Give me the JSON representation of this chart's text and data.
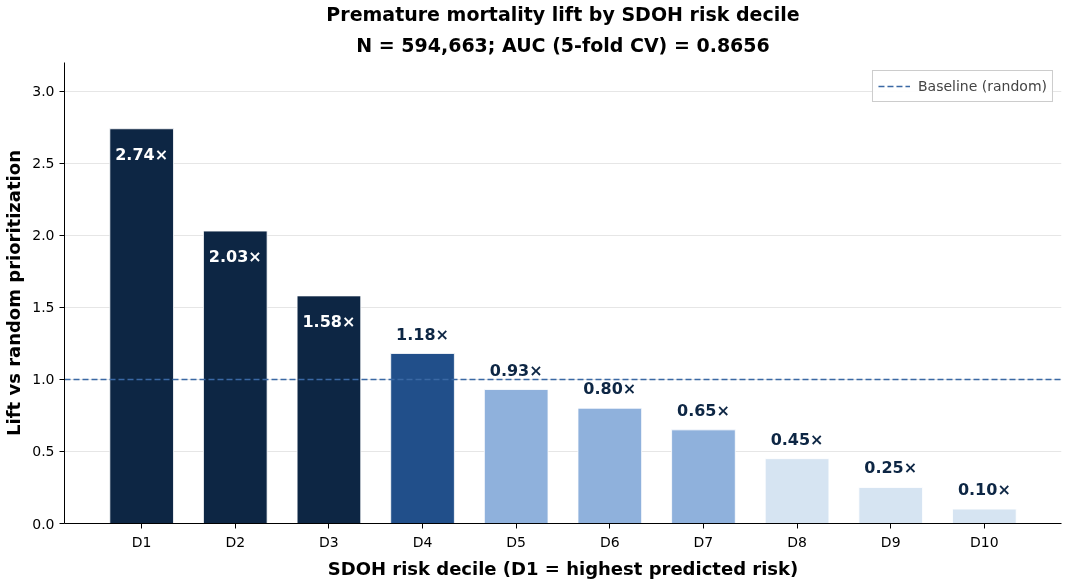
{
  "chart_data": {
    "type": "bar",
    "title": "Premature mortality lift by SDOH risk decile",
    "subtitle": "N = 594,663; AUC (5-fold CV) = 0.8656",
    "xlabel": "SDOH risk decile (D1 = highest predicted risk)",
    "ylabel": "Lift vs random prioritization",
    "categories": [
      "D1",
      "D2",
      "D3",
      "D4",
      "D5",
      "D6",
      "D7",
      "D8",
      "D9",
      "D10"
    ],
    "values": [
      2.74,
      2.03,
      1.58,
      1.18,
      0.93,
      0.8,
      0.65,
      0.45,
      0.25,
      0.1
    ],
    "colors": [
      "#0d2644",
      "#0d2644",
      "#0d2644",
      "#214f8a",
      "#8fb1dc",
      "#8fb1dc",
      "#8fb1dc",
      "#d6e4f2",
      "#d6e4f2",
      "#d6e4f2"
    ],
    "value_labels": [
      "2.74×",
      "2.03×",
      "1.58×",
      "1.18×",
      "0.93×",
      "0.80×",
      "0.65×",
      "0.45×",
      "0.25×",
      "0.10×"
    ],
    "ylim": [
      0,
      3.2
    ],
    "yticks": [
      {
        "value": 0,
        "label": "0.0"
      },
      {
        "value": 0.5,
        "label": "0.5"
      },
      {
        "value": 1,
        "label": "1.0"
      },
      {
        "value": 1.5,
        "label": "1.5"
      },
      {
        "value": 2,
        "label": "2.0"
      },
      {
        "value": 2.5,
        "label": "2.5"
      },
      {
        "value": 3,
        "label": "3.0"
      }
    ],
    "grid": "y",
    "legend": "top right",
    "ref_lines": [
      {
        "axis": "y",
        "value": 1.0,
        "label": "Baseline (random)",
        "color": "#3a68a4",
        "line_style": "dashed"
      }
    ]
  }
}
